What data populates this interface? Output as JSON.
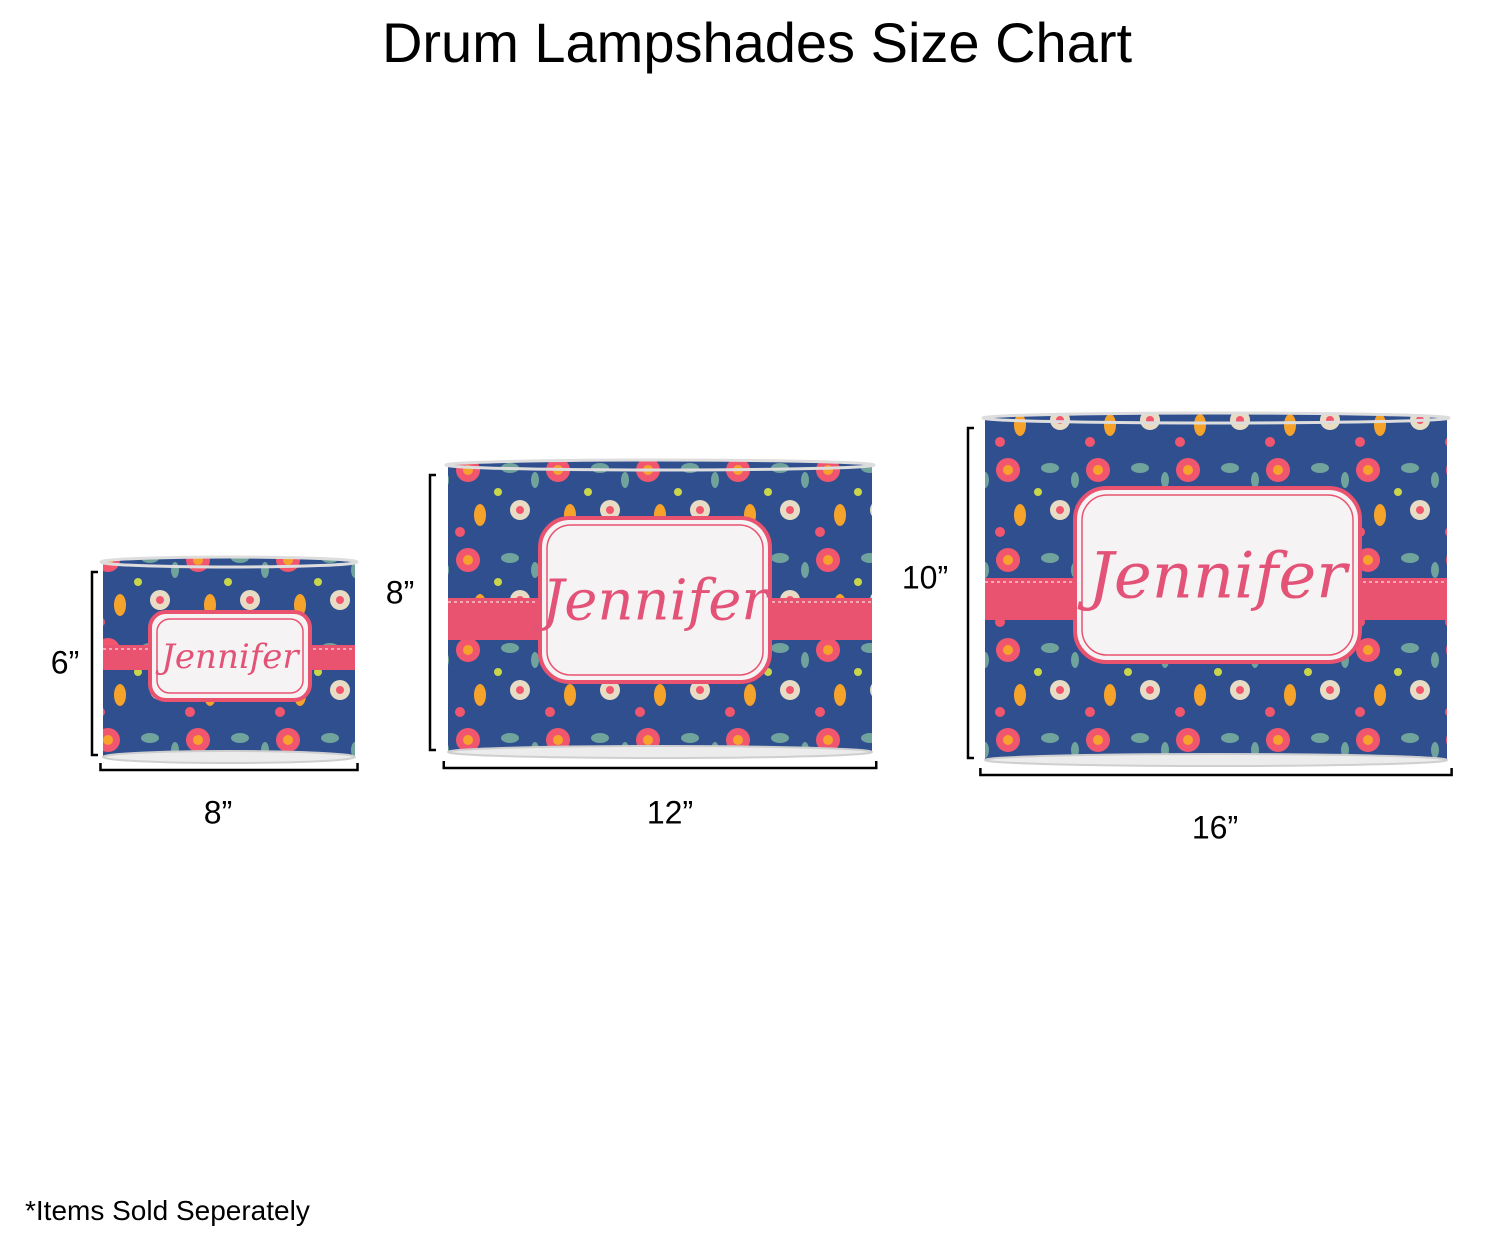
{
  "title": "Drum Lampshades Size Chart",
  "lampshades": [
    {
      "height": "6”",
      "width": "8”",
      "name": "Jennifer"
    },
    {
      "height": "8”",
      "width": "12”",
      "name": "Jennifer"
    },
    {
      "height": "10”",
      "width": "16”",
      "name": "Jennifer"
    }
  ],
  "footnote": "*Items Sold Seperately"
}
